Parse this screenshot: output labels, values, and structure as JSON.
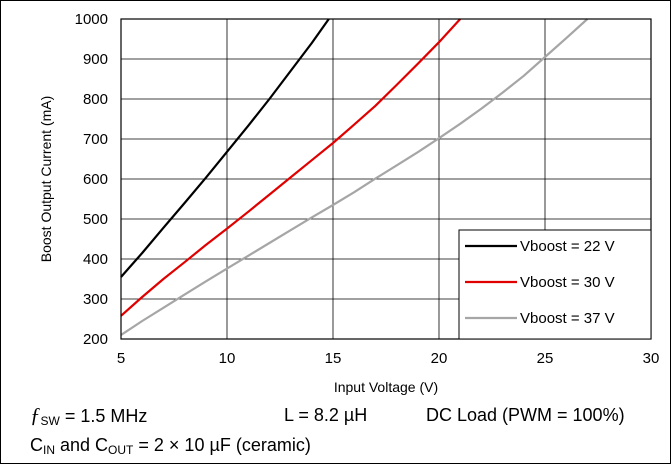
{
  "chart_data": {
    "type": "line",
    "xlabel": "Input Voltage (V)",
    "ylabel": "Boost Output Current (mA)",
    "xlim": [
      5,
      30
    ],
    "ylim": [
      200,
      1000
    ],
    "xticks": [
      5,
      10,
      15,
      20,
      25,
      30
    ],
    "yticks": [
      200,
      300,
      400,
      500,
      600,
      700,
      800,
      900,
      1000
    ],
    "grid": true,
    "legend_position": "bottom-right",
    "series": [
      {
        "name": "Vboost = 22 V",
        "color": "#000000",
        "x": [
          5,
          6,
          7,
          8,
          9,
          10,
          11,
          12,
          13,
          14,
          14.8
        ],
        "y": [
          355,
          415,
          478,
          540,
          603,
          668,
          733,
          800,
          870,
          940,
          1000
        ]
      },
      {
        "name": "Vboost = 30 V",
        "color": "#e00000",
        "x": [
          5,
          6,
          7,
          8,
          9,
          10,
          11,
          12,
          13,
          14,
          15,
          16,
          17,
          18,
          19,
          20,
          21
        ],
        "y": [
          258,
          305,
          350,
          392,
          435,
          476,
          518,
          561,
          604,
          647,
          690,
          736,
          783,
          835,
          888,
          942,
          1000
        ]
      },
      {
        "name": "Vboost = 37 V",
        "color": "#a6a6a6",
        "x": [
          5,
          6,
          7,
          8,
          9,
          10,
          11,
          12,
          13,
          14,
          15,
          16,
          17,
          18,
          19,
          20,
          21,
          22,
          23,
          24,
          25,
          26,
          27
        ],
        "y": [
          210,
          245,
          278,
          311,
          344,
          376,
          408,
          440,
          472,
          504,
          535,
          567,
          601,
          634,
          667,
          702,
          738,
          776,
          816,
          858,
          905,
          952,
          1000
        ]
      }
    ]
  },
  "conditions": {
    "fsw_symbol": "ƒ",
    "fsw_sub": "SW",
    "fsw_value": " = 1.5 MHz",
    "inductor": "L = 8.2 µH",
    "load": "DC Load (PWM = 100%)",
    "cin_c": "C",
    "cin_sub": "IN",
    "cin_mid": " and C",
    "cout_sub": "OUT",
    "cap_value": " = 2 × 10 µF (ceramic)"
  }
}
